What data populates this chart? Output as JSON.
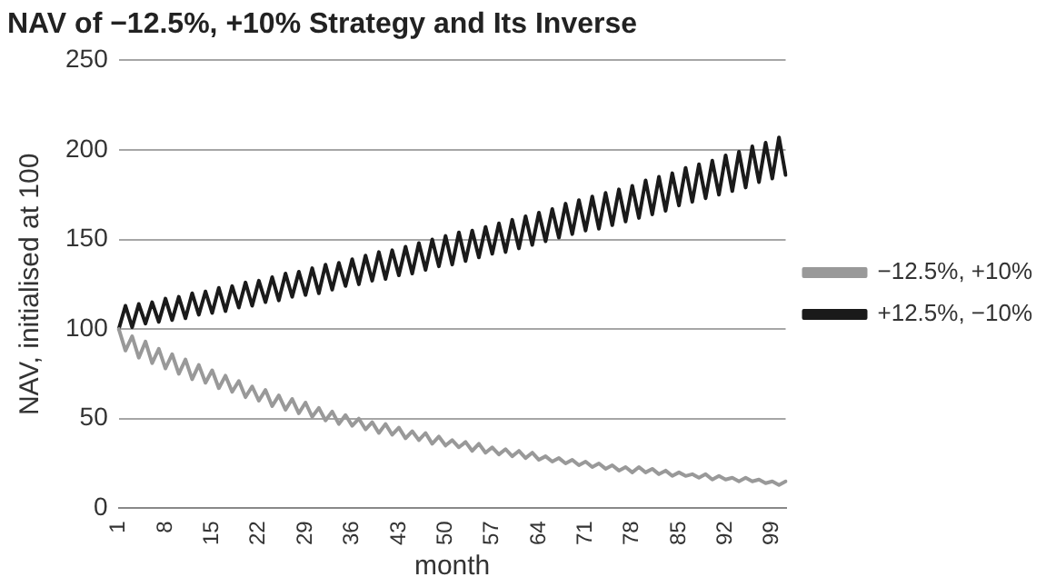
{
  "chart_data": {
    "type": "line",
    "title": "NAV of −12.5%, +10% Strategy and Its Inverse",
    "xlabel": "month",
    "ylabel": "NAV, initialised at 100",
    "categories": [
      "1",
      null,
      null,
      null,
      null,
      null,
      null,
      "8",
      null,
      null,
      null,
      null,
      null,
      null,
      "15",
      null,
      null,
      null,
      null,
      null,
      null,
      "22",
      null,
      null,
      null,
      null,
      null,
      null,
      "29",
      null,
      null,
      null,
      null,
      null,
      null,
      "36",
      null,
      null,
      null,
      null,
      null,
      null,
      "43",
      null,
      null,
      null,
      null,
      null,
      null,
      "50",
      null,
      null,
      null,
      null,
      null,
      null,
      "57",
      null,
      null,
      null,
      null,
      null,
      null,
      "64",
      null,
      null,
      null,
      null,
      null,
      null,
      "71",
      null,
      null,
      null,
      null,
      null,
      null,
      "78",
      null,
      null,
      null,
      null,
      null,
      null,
      "85",
      null,
      null,
      null,
      null,
      null,
      null,
      "92",
      null,
      null,
      null,
      null,
      null,
      null,
      "99",
      null,
      null
    ],
    "series": [
      {
        "name": "−12.5%, +10%",
        "color": "#999999",
        "values": [
          100,
          88,
          96,
          84,
          93,
          81,
          89,
          78,
          86,
          75,
          83,
          72,
          80,
          70,
          77,
          67,
          74,
          65,
          71,
          62,
          68,
          60,
          66,
          57,
          63,
          55,
          61,
          53,
          59,
          51,
          56,
          49,
          54,
          47,
          52,
          46,
          50,
          44,
          48,
          42,
          47,
          41,
          45,
          39,
          43,
          38,
          42,
          36,
          40,
          35,
          38,
          34,
          37,
          32,
          36,
          31,
          34,
          30,
          33,
          29,
          32,
          28,
          31,
          27,
          29,
          26,
          28,
          25,
          27,
          24,
          26,
          23,
          25,
          22,
          24,
          21,
          23,
          20,
          23,
          20,
          22,
          19,
          21,
          18,
          20,
          18,
          19,
          17,
          19,
          16,
          18,
          16,
          17,
          15,
          17,
          15,
          16,
          14,
          15,
          13,
          15
        ]
      },
      {
        "name": "+12.5%, −10%",
        "color": "#1a1a1a",
        "values": [
          100,
          113,
          101,
          114,
          103,
          115,
          104,
          117,
          105,
          118,
          106,
          120,
          108,
          121,
          109,
          123,
          110,
          124,
          112,
          126,
          113,
          127,
          115,
          129,
          116,
          131,
          118,
          132,
          119,
          134,
          120,
          136,
          122,
          137,
          124,
          139,
          125,
          141,
          127,
          143,
          128,
          144,
          130,
          146,
          131,
          148,
          133,
          150,
          135,
          152,
          136,
          154,
          138,
          155,
          140,
          157,
          142,
          159,
          143,
          161,
          145,
          163,
          147,
          165,
          149,
          167,
          151,
          170,
          153,
          172,
          155,
          174,
          156,
          176,
          158,
          178,
          160,
          180,
          162,
          183,
          164,
          185,
          166,
          187,
          169,
          190,
          171,
          192,
          173,
          194,
          175,
          197,
          177,
          199,
          179,
          202,
          182,
          204,
          184,
          207,
          186
        ]
      }
    ],
    "ylim": [
      0,
      250
    ],
    "yticks": [
      0,
      50,
      100,
      150,
      200,
      250
    ],
    "grid": "y",
    "legend": "right",
    "marker": "none",
    "line_style": "solid"
  }
}
